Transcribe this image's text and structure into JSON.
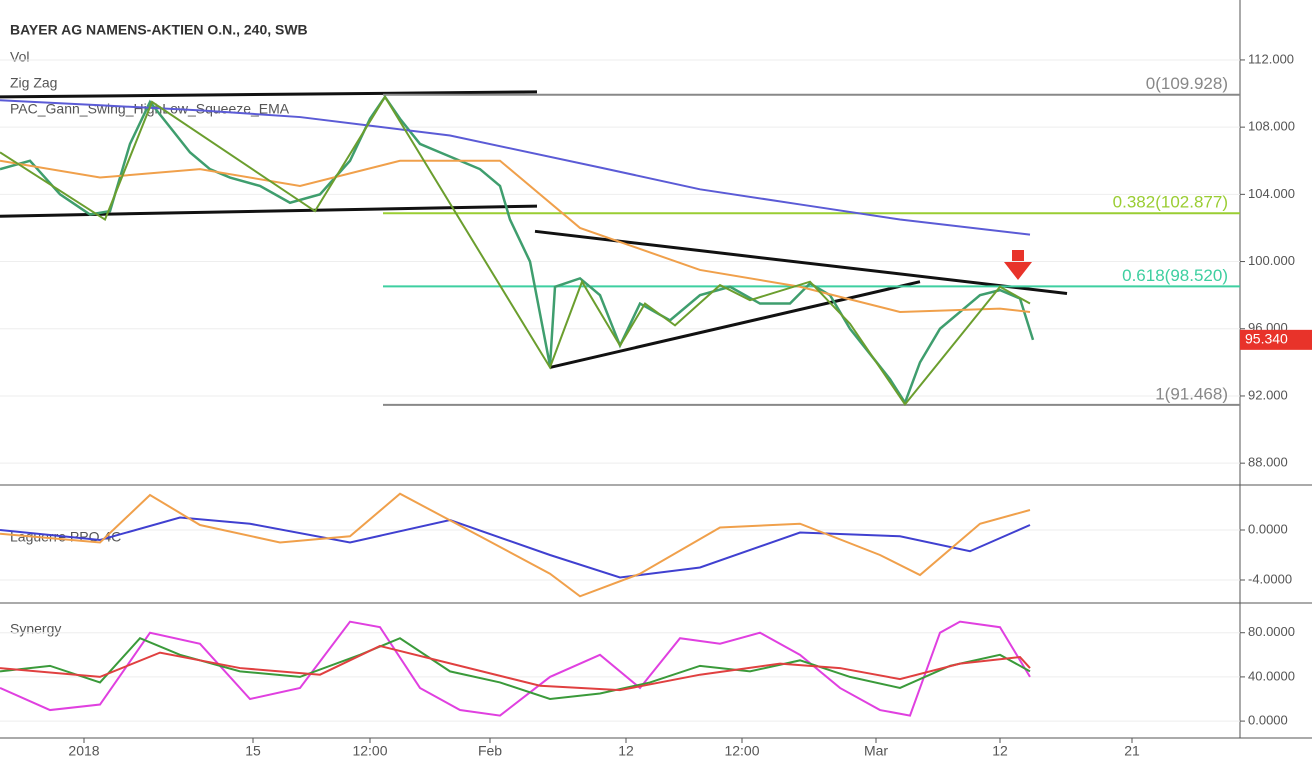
{
  "chart_data": [
    {
      "type": "line",
      "title": "BAYER AG NAMENS-AKTIEN O.N., 240, SWB",
      "indicators": [
        "Vol",
        "PAC_Gann_Swing_HighLow_Squeeze_EMA"
      ],
      "xlim": [
        0,
        124
      ],
      "ylim": [
        86.76,
        115.27
      ],
      "yticks": [
        {
          "value": 88,
          "label": "88.000"
        },
        {
          "value": 92,
          "label": "92.000"
        },
        {
          "value": 96,
          "label": "96.000"
        },
        {
          "value": 100,
          "label": "100.000"
        },
        {
          "value": 104,
          "label": "104.000"
        },
        {
          "value": 108,
          "label": "108.000"
        },
        {
          "value": 112,
          "label": "112.000"
        }
      ],
      "grid": true,
      "series": [
        {
          "color": "#3f9e6e",
          "x": [
            0,
            3,
            6,
            9,
            11,
            13,
            15,
            17,
            19,
            21,
            23,
            26,
            29,
            32,
            35,
            37,
            38.5,
            40,
            42,
            44,
            46,
            48,
            50,
            51,
            53,
            55,
            55.5,
            58,
            60,
            62,
            64,
            67,
            70,
            73,
            76,
            79,
            81,
            83,
            85,
            87,
            89,
            90.5,
            92,
            94,
            96,
            98,
            100,
            102,
            103.3
          ],
          "values": [
            105.5,
            106,
            104,
            102.8,
            103,
            107,
            109.5,
            108,
            106.5,
            105.5,
            105,
            104.5,
            103.5,
            104,
            106,
            108.5,
            109.8,
            108.5,
            107,
            106.5,
            106,
            105.5,
            104.5,
            102.5,
            100,
            93.8,
            98.5,
            99,
            98,
            95,
            97.5,
            96.5,
            98,
            98.5,
            97.5,
            97.5,
            98.7,
            98,
            96,
            94.5,
            93,
            91.6,
            94,
            96,
            97,
            98,
            98.3,
            97.8,
            95.34
          ]
        },
        {
          "color": "#5b5bd6",
          "x": [
            0,
            10,
            20,
            30,
            45,
            60,
            70,
            80,
            90,
            103
          ],
          "values": [
            109.6,
            109.3,
            109,
            108.6,
            107.5,
            105.6,
            104.3,
            103.4,
            102.5,
            101.6
          ]
        },
        {
          "color": "#f0a04b",
          "x": [
            0,
            10,
            20,
            30,
            40,
            50,
            58,
            70,
            80,
            90,
            100,
            103
          ],
          "values": [
            106,
            105,
            105.5,
            104.5,
            106,
            106,
            102,
            99.5,
            98.5,
            97,
            97.2,
            97
          ]
        },
        {
          "name": "Zig Zag",
          "color": "#6b9e2e",
          "x": [
            0,
            10.5,
            15.2,
            31.5,
            38.5,
            55,
            58.2,
            62,
            64.5,
            67.5,
            72,
            75,
            81,
            85,
            90.5,
            100,
            103
          ],
          "values": [
            106.5,
            102.5,
            109.5,
            103,
            109.8,
            93.7,
            98.8,
            95,
            97.5,
            96.2,
            98.6,
            97.7,
            98.8,
            96.3,
            91.5,
            98.5,
            97.5
          ]
        }
      ],
      "levels": [
        {
          "label": "0(109.928)",
          "value": 109.928,
          "color": "#888888"
        },
        {
          "label": "0.382(102.877)",
          "value": 102.877,
          "color": "#9acd32"
        },
        {
          "label": "0.618(98.520)",
          "value": 98.52,
          "color": "#3ecfa0"
        },
        {
          "label": "1(91.468)",
          "value": 91.468,
          "color": "#888888"
        }
      ],
      "trendlines": [
        [
          0,
          109.8,
          53.7,
          110.1
        ],
        [
          0,
          102.7,
          53.7,
          103.3
        ],
        [
          53.5,
          101.8,
          106.7,
          98.1
        ],
        [
          55,
          93.7,
          92,
          98.8
        ]
      ],
      "last_price": {
        "value": 95.34,
        "label": "95.340"
      }
    },
    {
      "type": "line",
      "title": "Laguerre PPO 4C",
      "xlim": [
        0,
        124
      ],
      "ylim": [
        -5.76,
        3.52
      ],
      "yticks": [
        {
          "value": -4,
          "label": "-4.0000"
        },
        {
          "value": 0,
          "label": "0.0000"
        }
      ],
      "series": [
        {
          "color": "#4040d0",
          "x": [
            0,
            10,
            18,
            25,
            35,
            45,
            55,
            62,
            70,
            80,
            90,
            97,
            103
          ],
          "values": [
            0,
            -0.8,
            1,
            0.5,
            -1,
            0.8,
            -2,
            -3.8,
            -3,
            -0.2,
            -0.5,
            -1.7,
            0.4
          ]
        },
        {
          "color": "#f0a04b",
          "x": [
            0,
            10,
            15,
            20,
            28,
            35,
            40,
            48,
            55,
            58,
            64,
            72,
            80,
            88,
            92,
            98,
            103
          ],
          "values": [
            -0.3,
            -1,
            2.8,
            0.4,
            -1,
            -0.5,
            2.9,
            -0.5,
            -3.5,
            -5.3,
            -3.5,
            0.2,
            0.5,
            -2,
            -3.6,
            0.5,
            1.6
          ]
        }
      ]
    },
    {
      "type": "line",
      "title": "Synergy",
      "xlim": [
        0,
        124
      ],
      "ylim": [
        -14.4,
        106
      ],
      "yticks": [
        {
          "value": 0,
          "label": "0.0000"
        },
        {
          "value": 40,
          "label": "40.0000"
        },
        {
          "value": 80,
          "label": "80.0000"
        }
      ],
      "xticks": [
        {
          "value": 8.4,
          "label": "2018"
        },
        {
          "value": 25.3,
          "label": "15"
        },
        {
          "value": 37,
          "label": "12:00"
        },
        {
          "value": 49,
          "label": "Feb"
        },
        {
          "value": 62.6,
          "label": "12"
        },
        {
          "value": 74.2,
          "label": "12:00"
        },
        {
          "value": 87.6,
          "label": "Mar"
        },
        {
          "value": 100,
          "label": "12"
        },
        {
          "value": 113.2,
          "label": "21"
        }
      ],
      "series": [
        {
          "color": "#e040e0",
          "x": [
            0,
            5,
            10,
            15,
            20,
            25,
            30,
            35,
            38,
            42,
            46,
            50,
            55,
            60,
            64,
            68,
            72,
            76,
            80,
            84,
            88,
            91,
            94,
            96,
            100,
            103
          ],
          "values": [
            30,
            10,
            15,
            80,
            70,
            20,
            30,
            90,
            85,
            30,
            10,
            5,
            40,
            60,
            30,
            75,
            70,
            80,
            60,
            30,
            10,
            5,
            80,
            90,
            85,
            40
          ]
        },
        {
          "color": "#3a9a3a",
          "x": [
            0,
            5,
            10,
            14,
            18,
            24,
            30,
            36,
            40,
            45,
            50,
            55,
            60,
            65,
            70,
            75,
            80,
            85,
            90,
            95,
            100,
            103
          ],
          "values": [
            45,
            50,
            35,
            75,
            60,
            45,
            40,
            60,
            75,
            45,
            35,
            20,
            25,
            35,
            50,
            45,
            55,
            40,
            30,
            50,
            60,
            45
          ]
        },
        {
          "color": "#e04040",
          "x": [
            0,
            10,
            16,
            24,
            32,
            38,
            46,
            54,
            62,
            70,
            78,
            84,
            90,
            96,
            102,
            103
          ],
          "values": [
            48,
            40,
            62,
            48,
            42,
            68,
            50,
            32,
            28,
            42,
            52,
            48,
            38,
            52,
            58,
            48
          ]
        }
      ]
    }
  ]
}
